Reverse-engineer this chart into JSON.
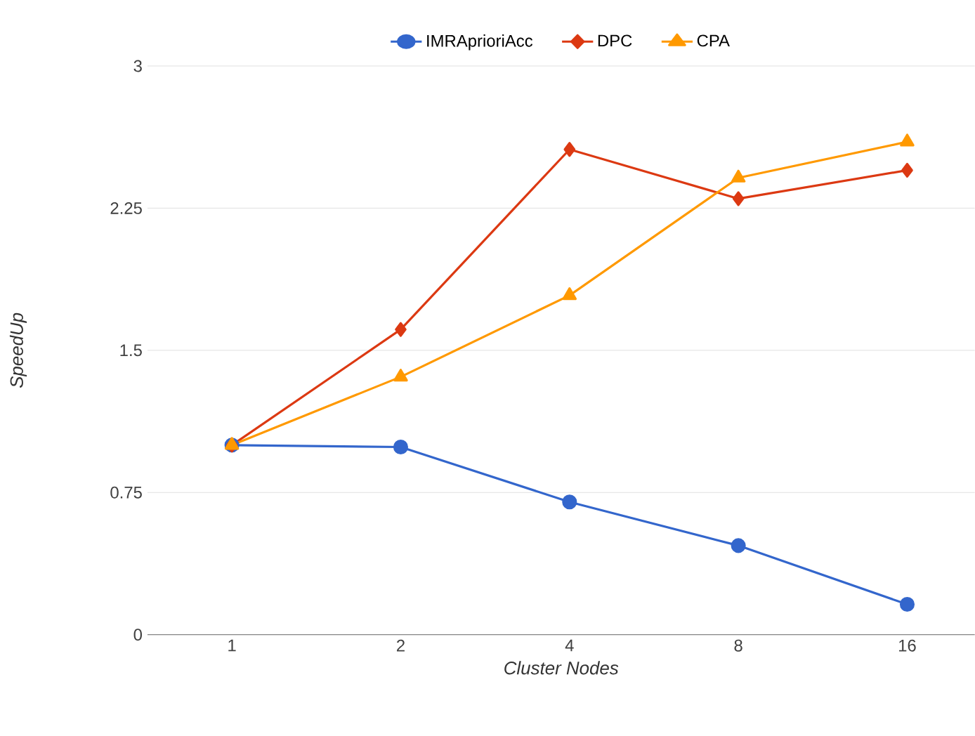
{
  "chart_data": {
    "type": "line",
    "xlabel": "Cluster Nodes",
    "ylabel": "SpeedUp",
    "categories": [
      "1",
      "2",
      "4",
      "8",
      "16"
    ],
    "series": [
      {
        "name": "IMRAprioriAcc",
        "color": "#3366cc",
        "marker": "circle",
        "values": [
          1.0,
          0.99,
          0.7,
          0.47,
          0.16
        ]
      },
      {
        "name": "DPC",
        "color": "#dc3912",
        "marker": "diamond",
        "values": [
          1.0,
          1.61,
          2.56,
          2.3,
          2.45
        ]
      },
      {
        "name": "CPA",
        "color": "#ff9900",
        "marker": "triangle",
        "values": [
          1.0,
          1.36,
          1.79,
          2.41,
          2.6
        ]
      }
    ],
    "ylim": [
      0,
      3
    ],
    "yticks": [
      0,
      0.75,
      1.5,
      2.25,
      3
    ],
    "grid": "y",
    "legend": "top",
    "line_style": "solid"
  }
}
